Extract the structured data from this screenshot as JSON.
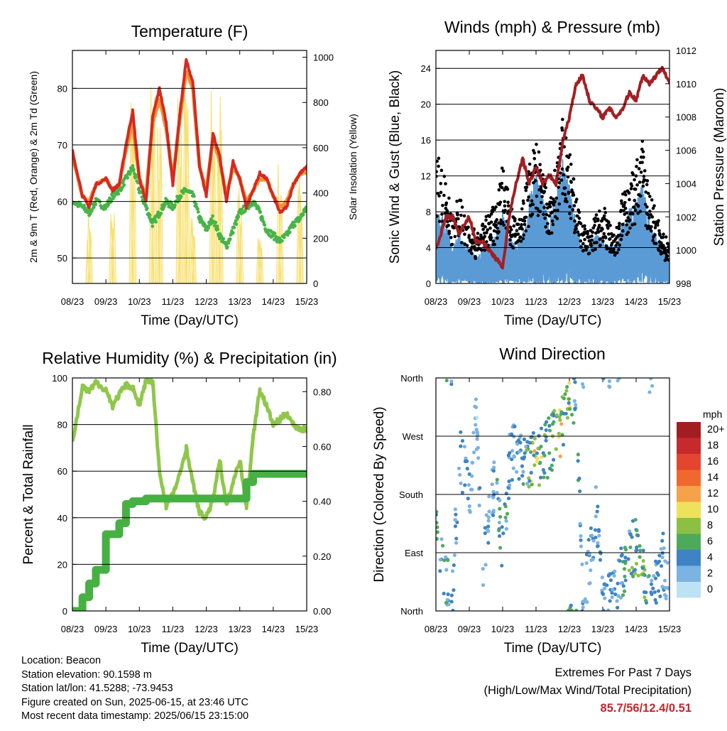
{
  "colors": {
    "temp2m": "#d42a22",
    "temp9m": "#f39232",
    "dewpoint": "#47b447",
    "solar": "#f7e06e",
    "gust": "#000000",
    "wind": "#5b9bd5",
    "pressure": "#a31f24",
    "rh": "#8fc74a",
    "precip": "#46b043",
    "extremes": "#c4262e"
  },
  "x_tick_labels": [
    "08/23",
    "09/23",
    "10/23",
    "11/23",
    "12/23",
    "13/23",
    "14/23",
    "15/23"
  ],
  "x_axis_label": "Time (Day/UTC)",
  "chart_data": [
    {
      "type": "line",
      "title": "Temperature (F)",
      "xlabel": "Time (Day/UTC)",
      "ylabel": "2m & 9m T (Red, Orange) & 2m Td (Green)",
      "y2label": "Solar Insolation (Yellow)",
      "ylim": [
        45.5,
        86.7
      ],
      "y2lim": [
        0,
        1030
      ],
      "yticks": [
        50,
        60,
        70,
        80
      ],
      "y2ticks": [
        0,
        200,
        400,
        600,
        800,
        1000
      ],
      "x": [
        8.0,
        8.3,
        8.5,
        8.7,
        9.0,
        9.2,
        9.4,
        9.6,
        9.8,
        10.0,
        10.2,
        10.4,
        10.6,
        10.8,
        11.0,
        11.2,
        11.4,
        11.6,
        11.8,
        12.0,
        12.2,
        12.4,
        12.6,
        12.8,
        13.0,
        13.2,
        13.4,
        13.6,
        13.8,
        14.0,
        14.2,
        14.4,
        14.6,
        14.8,
        15.0
      ],
      "series": [
        {
          "name": "2m T",
          "values": [
            69,
            61,
            59,
            63,
            64,
            62,
            63,
            70,
            76,
            64,
            60,
            75,
            80,
            74,
            63,
            75,
            85,
            81,
            66,
            61,
            72,
            68,
            60,
            67,
            64,
            59,
            62,
            65,
            64,
            61,
            58,
            59,
            63,
            65,
            66
          ]
        },
        {
          "name": "9m T",
          "values": [
            68,
            61,
            60,
            63,
            64,
            62,
            63,
            69,
            74,
            64,
            61,
            74,
            78,
            73,
            64,
            74,
            83,
            80,
            66,
            62,
            71,
            67,
            61,
            66,
            64,
            60,
            62,
            64,
            64,
            61,
            59,
            60,
            63,
            65,
            65
          ]
        },
        {
          "name": "2m Td",
          "values": [
            60,
            59,
            58,
            60,
            59,
            61,
            62,
            64,
            66,
            62,
            59,
            56,
            58,
            60,
            59,
            61,
            62,
            61,
            57,
            55,
            57,
            54,
            52,
            55,
            58,
            59,
            60,
            58,
            55,
            54,
            53,
            54,
            56,
            57,
            59
          ]
        },
        {
          "name": "Solar Insolation",
          "axis": "y2",
          "values": [
            0,
            0,
            350,
            0,
            0,
            350,
            0,
            0,
            900,
            0,
            0,
            950,
            800,
            0,
            0,
            850,
            950,
            300,
            0,
            0,
            920,
            850,
            0,
            0,
            450,
            0,
            0,
            250,
            0,
            0,
            550,
            0,
            0,
            500,
            0
          ]
        }
      ]
    },
    {
      "type": "line",
      "title": "Winds (mph) & Pressure (mb)",
      "xlabel": "Time (Day/UTC)",
      "ylabel": "Sonic Wind & Gust (Blue, Black)",
      "y2label": "Station Pressure (Maroon)",
      "ylim": [
        0,
        26
      ],
      "y2lim": [
        998,
        1012
      ],
      "yticks": [
        0,
        4,
        8,
        12,
        16,
        20,
        24
      ],
      "y2ticks": [
        998,
        1000,
        1002,
        1004,
        1006,
        1008,
        1010,
        1012
      ],
      "x": [
        8.0,
        8.3,
        8.5,
        8.7,
        9.0,
        9.2,
        9.4,
        9.6,
        9.8,
        10.0,
        10.2,
        10.4,
        10.6,
        10.8,
        11.0,
        11.2,
        11.4,
        11.6,
        11.8,
        12.0,
        12.2,
        12.4,
        12.6,
        12.8,
        13.0,
        13.2,
        13.4,
        13.6,
        13.8,
        14.0,
        14.2,
        14.4,
        14.6,
        14.8,
        15.0
      ],
      "series": [
        {
          "name": "Gust",
          "values": [
            14,
            10,
            7,
            9,
            6,
            5,
            6,
            7,
            8,
            12,
            8,
            6,
            8,
            12,
            14,
            11,
            8,
            12,
            16,
            13,
            9,
            6,
            5,
            7,
            8,
            6,
            5,
            9,
            10,
            12,
            14,
            9,
            7,
            5,
            4
          ]
        },
        {
          "name": "Sonic Wind",
          "values": [
            6,
            5,
            3,
            4,
            3,
            2,
            3,
            3,
            4,
            6,
            4,
            3,
            4,
            7,
            9,
            7,
            5,
            7,
            10,
            8,
            5,
            3,
            3,
            4,
            4,
            3,
            3,
            5,
            6,
            7,
            8,
            5,
            4,
            3,
            2
          ]
        },
        {
          "name": "Station Pressure",
          "axis": "y2",
          "values": [
            1000.0,
            1002.0,
            1002.0,
            1001.0,
            1002.0,
            1000.5,
            1000.5,
            1000.0,
            999.5,
            999.0,
            1002.0,
            1004.0,
            1005.5,
            1004.0,
            1005.0,
            1004.0,
            1004.5,
            1004.0,
            1006.5,
            1008.0,
            1010.0,
            1010.5,
            1009.0,
            1008.5,
            1008.0,
            1008.5,
            1008.0,
            1008.5,
            1009.5,
            1009.0,
            1010.5,
            1010.0,
            1010.5,
            1011.0,
            1010.0
          ]
        }
      ]
    },
    {
      "type": "line",
      "title": "Relative Humidity (%) & Precipitation (in)",
      "xlabel": "Time (Day/UTC)",
      "ylabel": "Percent & Total Rainfall",
      "ylim": [
        0,
        100
      ],
      "y2lim": [
        0,
        0.85
      ],
      "yticks": [
        0,
        20,
        40,
        60,
        80,
        100
      ],
      "y2ticks": [
        0.0,
        0.2,
        0.4,
        0.6,
        0.8
      ],
      "x": [
        8.0,
        8.3,
        8.5,
        8.7,
        9.0,
        9.2,
        9.4,
        9.6,
        9.8,
        10.0,
        10.2,
        10.4,
        10.6,
        10.8,
        11.0,
        11.2,
        11.4,
        11.6,
        11.8,
        12.0,
        12.2,
        12.4,
        12.6,
        12.8,
        13.0,
        13.2,
        13.4,
        13.6,
        13.8,
        14.0,
        14.2,
        14.4,
        14.6,
        14.8,
        15.0
      ],
      "series": [
        {
          "name": "Relative Humidity",
          "values": [
            72,
            96,
            94,
            98,
            95,
            88,
            93,
            97,
            96,
            88,
            99,
            98,
            60,
            45,
            50,
            58,
            70,
            55,
            42,
            40,
            48,
            65,
            45,
            55,
            65,
            45,
            75,
            95,
            88,
            80,
            82,
            85,
            80,
            78,
            78
          ]
        },
        {
          "name": "Total Precipitation",
          "axis": "y2",
          "values": [
            0.0,
            0.05,
            0.1,
            0.15,
            0.28,
            0.28,
            0.32,
            0.39,
            0.4,
            0.4,
            0.41,
            0.41,
            0.41,
            0.41,
            0.41,
            0.41,
            0.41,
            0.41,
            0.41,
            0.41,
            0.41,
            0.41,
            0.41,
            0.41,
            0.41,
            0.47,
            0.5,
            0.5,
            0.5,
            0.5,
            0.5,
            0.5,
            0.5,
            0.5,
            0.51
          ]
        }
      ]
    },
    {
      "type": "scatter",
      "title": "Wind Direction",
      "xlabel": "Time (Day/UTC)",
      "ylabel": "Direction (Colored By Speed)",
      "ylim": [
        0,
        360
      ],
      "yticks": [
        "North",
        "East",
        "South",
        "West",
        "North"
      ],
      "x": [
        8.0,
        8.3,
        8.5,
        8.7,
        9.0,
        9.2,
        9.4,
        9.6,
        9.8,
        10.0,
        10.2,
        10.4,
        10.6,
        10.8,
        11.0,
        11.2,
        11.4,
        11.6,
        11.8,
        12.0,
        12.2,
        12.4,
        12.6,
        12.8,
        13.0,
        13.2,
        13.4,
        13.6,
        13.8,
        14.0,
        14.2,
        14.4,
        14.6,
        14.8,
        15.0
      ],
      "series": [
        {
          "name": "Direction",
          "values": [
            120,
            40,
            20,
            250,
            180,
            300,
            60,
            150,
            220,
            90,
            230,
            250,
            240,
            230,
            235,
            240,
            255,
            270,
            290,
            320,
            340,
            10,
            80,
            150,
            40,
            20,
            30,
            60,
            90,
            100,
            60,
            20,
            40,
            80,
            30
          ]
        },
        {
          "name": "Speed",
          "values": [
            6,
            5,
            3,
            4,
            3,
            2,
            3,
            3,
            4,
            6,
            4,
            3,
            4,
            7,
            9,
            7,
            5,
            7,
            10,
            8,
            5,
            3,
            3,
            4,
            4,
            3,
            3,
            5,
            6,
            7,
            8,
            5,
            4,
            3,
            2
          ]
        }
      ],
      "colorbar": {
        "title": "mph",
        "labels": [
          "20+",
          "18",
          "16",
          "14",
          "12",
          "10",
          "8",
          "6",
          "4",
          "2",
          "0"
        ],
        "colors": [
          "#a11d21",
          "#c72a2d",
          "#e3452f",
          "#f1682f",
          "#f6a24b",
          "#eee25c",
          "#8cc044",
          "#4daa5c",
          "#3f83c4",
          "#7bb3e3",
          "#bde2f6"
        ]
      }
    }
  ],
  "info": {
    "location": "Location: Beacon",
    "elevation": "Station elevation: 90.1598 m",
    "latlon": "Station lat/lon: 41.5288; -73.9453",
    "created": "Figure created on Sun, 2025-06-15, at 23:46 UTC",
    "latest": "Most recent data timestamp: 2025/06/15 23:15:00"
  },
  "extremes": {
    "title": "Extremes For Past 7 Days",
    "subtitle": "(High/Low/Max Wind/Total Precipitation)",
    "values": "85.7/56/12.4/0.51"
  }
}
